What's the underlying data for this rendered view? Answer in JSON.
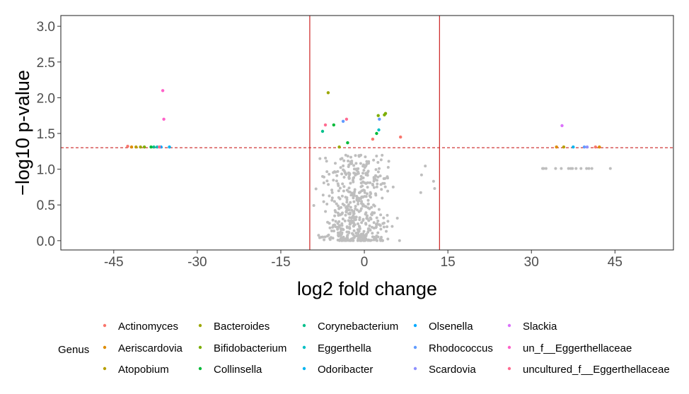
{
  "chart_data": {
    "type": "scatter",
    "title": "",
    "xlabel": "log2 fold change",
    "ylabel": "−log10 p-value",
    "xlim": [
      -54.5,
      55.5
    ],
    "ylim": [
      -0.13,
      3.15
    ],
    "x_ticks": [
      -45,
      -30,
      -15,
      0,
      15,
      30,
      45
    ],
    "x_tick_labels": [
      "-45",
      "-30",
      "-15",
      "0",
      "15",
      "30",
      "45"
    ],
    "y_ticks": [
      0.0,
      0.5,
      1.0,
      1.5,
      2.0,
      2.5,
      3.0
    ],
    "y_tick_labels": [
      "0.0",
      "0.5",
      "1.0",
      "1.5",
      "2.0",
      "2.5",
      "3.0"
    ],
    "grid": false,
    "thresholds": {
      "fold_change_lines": [
        -9.8,
        13.5
      ],
      "pvalue_line": 1.301
    },
    "colors": {
      "nonsignificant": "#BEBEBE",
      "threshold_vertical": "#CC2222",
      "threshold_horizontal": "#CC2222"
    },
    "legend": {
      "title": "Genus",
      "position": "bottom",
      "columns": [
        [
          "Actinomyces",
          "Aeriscardovia",
          "Atopobium"
        ],
        [
          "Bacteroides",
          "Bifidobacterium",
          "Collinsella"
        ],
        [
          "Corynebacterium",
          "Eggerthella",
          "Odoribacter"
        ],
        [
          "Olsenella",
          "Rhodococcus",
          "Scardovia"
        ],
        [
          "Slackia",
          "un_f__Eggerthellaceae",
          "uncultured_f__Eggerthellaceae"
        ]
      ]
    },
    "series": [
      {
        "name": "Actinomyces",
        "color": "#F8766D",
        "points": [
          [
            -42.5,
            1.32
          ],
          [
            1.5,
            1.42
          ],
          [
            6.5,
            1.45
          ],
          [
            41.5,
            1.31
          ]
        ]
      },
      {
        "name": "Aeriscardovia",
        "color": "#DE8C00",
        "points": [
          [
            -41.8,
            1.31
          ],
          [
            34.5,
            1.31
          ],
          [
            42.2,
            1.31
          ]
        ]
      },
      {
        "name": "Atopobium",
        "color": "#B79F00",
        "points": [
          [
            -41.0,
            1.31
          ],
          [
            35.8,
            1.31
          ]
        ]
      },
      {
        "name": "Bacteroides",
        "color": "#9CA700",
        "points": [
          [
            -40.2,
            1.31
          ],
          [
            -6.5,
            2.07
          ],
          [
            -4.5,
            1.31
          ]
        ]
      },
      {
        "name": "Bifidobacterium",
        "color": "#7CAE00",
        "points": [
          [
            -39.5,
            1.31
          ],
          [
            2.5,
            1.75
          ],
          [
            3.8,
            1.78
          ],
          [
            3.6,
            1.76
          ]
        ]
      },
      {
        "name": "Collinsella",
        "color": "#00BA38",
        "points": [
          [
            -38.3,
            1.31
          ],
          [
            -5.5,
            1.62
          ],
          [
            -3.0,
            1.37
          ],
          [
            2.2,
            1.5
          ]
        ]
      },
      {
        "name": "Corynebacterium",
        "color": "#00C08B",
        "points": [
          [
            -37.8,
            1.31
          ],
          [
            -7.5,
            1.53
          ]
        ]
      },
      {
        "name": "Eggerthella",
        "color": "#00BFC4",
        "points": [
          [
            -37.2,
            1.31
          ],
          [
            2.6,
            1.55
          ]
        ]
      },
      {
        "name": "Odoribacter",
        "color": "#00B4F0",
        "points": [
          [
            -35.0,
            1.31
          ],
          [
            37.5,
            1.31
          ]
        ]
      },
      {
        "name": "Olsenella",
        "color": "#00A9FF",
        "points": [
          [
            -36.5,
            1.31
          ]
        ]
      },
      {
        "name": "Rhodococcus",
        "color": "#619CFF",
        "points": [
          [
            -3.8,
            1.67
          ],
          [
            2.7,
            1.7
          ],
          [
            39.5,
            1.31
          ]
        ]
      },
      {
        "name": "Scardovia",
        "color": "#8F91FF",
        "points": [
          [
            40.0,
            1.31
          ]
        ]
      },
      {
        "name": "Slackia",
        "color": "#DB72FB",
        "points": [
          [
            35.5,
            1.61
          ]
        ]
      },
      {
        "name": "un_f__Eggerthellaceae",
        "color": "#FF61C9",
        "points": [
          [
            -36.2,
            2.1
          ],
          [
            -36.0,
            1.7
          ]
        ]
      },
      {
        "name": "uncultured_f__Eggerthellaceae",
        "color": "#FF6C91",
        "points": [
          [
            -36.8,
            1.31
          ],
          [
            -7.0,
            1.62
          ],
          [
            -3.2,
            1.7
          ]
        ]
      }
    ],
    "nonsignificant_clusters": [
      {
        "xmin": -10,
        "xmax": 7,
        "ymin": 0.0,
        "ymax": 1.2,
        "count": 520
      },
      {
        "xmin": 32,
        "xmax": 45,
        "ymin": 1.01,
        "ymax": 1.01,
        "count": 14
      },
      {
        "xmin": 8,
        "xmax": 14,
        "ymin": 0.45,
        "ymax": 1.05,
        "count": 5
      }
    ]
  }
}
